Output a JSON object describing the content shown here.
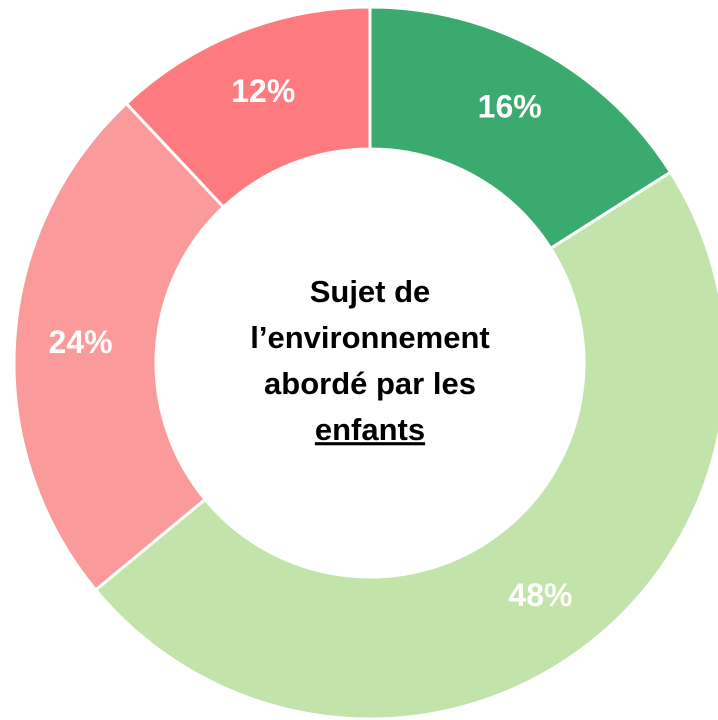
{
  "chart_data": {
    "type": "donut",
    "title": [
      "Sujet de",
      "l’environnement",
      "abordé par les",
      "enfants"
    ],
    "values": [
      16,
      48,
      24,
      12
    ],
    "value_labels": [
      "16%",
      "48%",
      "24%",
      "12%"
    ],
    "colors": [
      "#3aaa6e",
      "#c2e3a9",
      "#fb9a9a",
      "#fd7b7e"
    ]
  }
}
